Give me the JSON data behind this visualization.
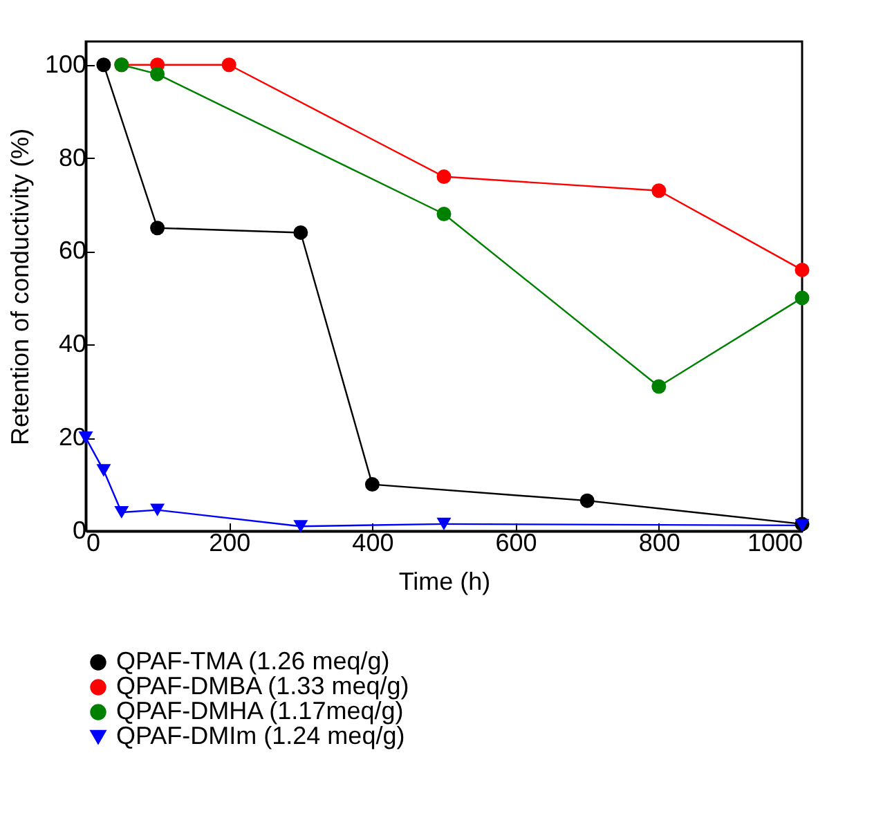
{
  "chart_data": {
    "type": "line",
    "xlabel": "Time (h)",
    "ylabel": "Retention of conductivity (%)",
    "xlim": [
      0,
      1000
    ],
    "xticks": [
      0,
      200,
      400,
      600,
      800,
      1000
    ],
    "ylim": [
      0,
      105
    ],
    "yticks": [
      0,
      20,
      40,
      60,
      80,
      100
    ],
    "grid": false,
    "legend": "bottom",
    "line_style": "solid",
    "series": [
      {
        "name": "QPAF-TMA (1.26 meq/g)",
        "color": "#000000",
        "marker": "circle",
        "x": [
          25,
          100,
          300,
          400,
          700,
          1000
        ],
        "values": [
          100,
          65,
          64,
          10,
          6.5,
          1.5
        ]
      },
      {
        "name": "QPAF-DMBA (1.33 meq/g)",
        "color": "#ff0000",
        "marker": "circle",
        "x": [
          50,
          100,
          200,
          500,
          800,
          1000
        ],
        "values": [
          100,
          100,
          100,
          76,
          73,
          56
        ]
      },
      {
        "name": "QPAF-DMHA (1.17meq/g)",
        "color": "#008000",
        "marker": "circle",
        "x": [
          50,
          100,
          500,
          800,
          1000
        ],
        "values": [
          100,
          98,
          68,
          31,
          50
        ]
      },
      {
        "name": "QPAF-DMIm (1.24 meq/g)",
        "color": "#0000ff",
        "marker": "triangle",
        "x": [
          0,
          25,
          50,
          100,
          300,
          500,
          1000
        ],
        "values": [
          20,
          13,
          4,
          4.5,
          1,
          1.5,
          1.2
        ]
      }
    ]
  }
}
